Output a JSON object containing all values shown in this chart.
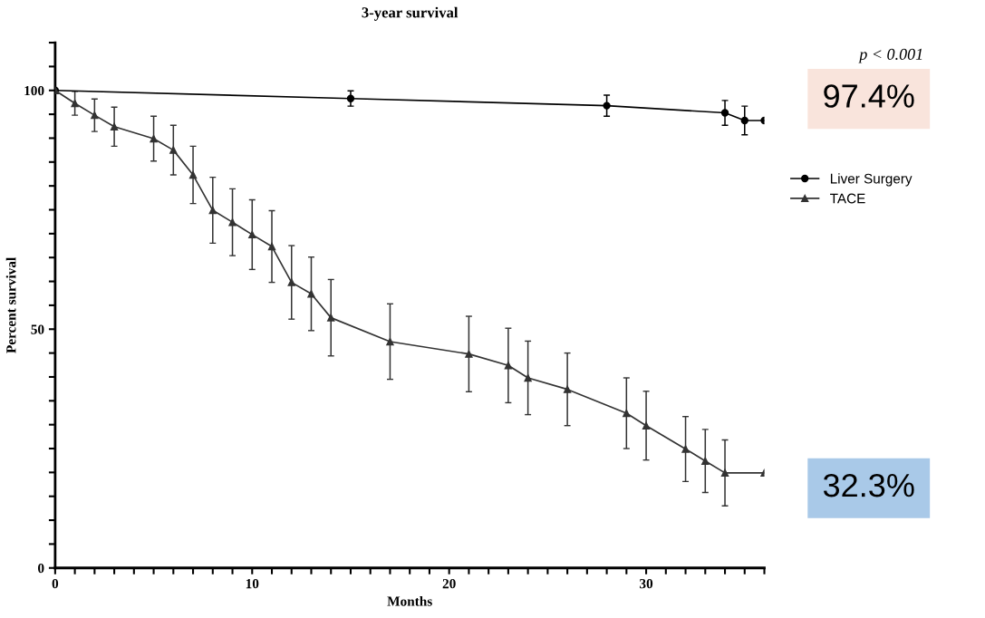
{
  "chart_data": {
    "type": "line",
    "title": "3-year survival",
    "xlabel": "Months",
    "ylabel": "Percent survival",
    "xlim": [
      0,
      36
    ],
    "ylim": [
      0,
      110
    ],
    "xticks": [
      0,
      {
        "value": 1,
        "label": null
      },
      {
        "value": 2,
        "label": null
      },
      {
        "value": 3,
        "label": null
      },
      {
        "value": 4,
        "label": null
      },
      {
        "value": 5,
        "label": null
      },
      {
        "value": 6,
        "label": null
      },
      {
        "value": 7,
        "label": null
      },
      {
        "value": 8,
        "label": null
      },
      {
        "value": 9,
        "label": null
      },
      10,
      {
        "value": 11,
        "label": null
      },
      {
        "value": 12,
        "label": null
      },
      {
        "value": 13,
        "label": null
      },
      {
        "value": 14,
        "label": null
      },
      {
        "value": 15,
        "label": null
      },
      {
        "value": 16,
        "label": null
      },
      {
        "value": 17,
        "label": null
      },
      {
        "value": 18,
        "label": null
      },
      {
        "value": 19,
        "label": null
      },
      20,
      {
        "value": 21,
        "label": null
      },
      {
        "value": 22,
        "label": null
      },
      {
        "value": 23,
        "label": null
      },
      {
        "value": 24,
        "label": null
      },
      {
        "value": 25,
        "label": null
      },
      {
        "value": 26,
        "label": null
      },
      {
        "value": 27,
        "label": null
      },
      {
        "value": 28,
        "label": null
      },
      {
        "value": 29,
        "label": null
      },
      30,
      {
        "value": 31,
        "label": null
      },
      {
        "value": 32,
        "label": null
      },
      {
        "value": 33,
        "label": null
      },
      {
        "value": 34,
        "label": null
      },
      {
        "value": 35,
        "label": null
      },
      {
        "value": 36,
        "label": null
      }
    ],
    "yticks": [
      0,
      {
        "value": 5,
        "label": null
      },
      {
        "value": 10,
        "label": null
      },
      {
        "value": 15,
        "label": null
      },
      {
        "value": 20,
        "label": null
      },
      {
        "value": 25,
        "label": null
      },
      {
        "value": 30,
        "label": null
      },
      {
        "value": 35,
        "label": null
      },
      {
        "value": 40,
        "label": null
      },
      {
        "value": 45,
        "label": null
      },
      50,
      {
        "value": 55,
        "label": null
      },
      {
        "value": 60,
        "label": null
      },
      {
        "value": 65,
        "label": null
      },
      {
        "value": 70,
        "label": null
      },
      {
        "value": 75,
        "label": null
      },
      {
        "value": 80,
        "label": null
      },
      {
        "value": 85,
        "label": null
      },
      {
        "value": 90,
        "label": null
      },
      {
        "value": 95,
        "label": null
      },
      100,
      {
        "value": 105,
        "label": null
      },
      {
        "value": 110,
        "label": null
      }
    ],
    "series": [
      {
        "name": "Liver Surgery",
        "color": "#000000",
        "marker": "circle",
        "x": [
          0,
          15,
          28,
          34,
          35,
          36
        ],
        "values": [
          100,
          98.3,
          96.8,
          95.3,
          93.7,
          93.7
        ],
        "errors": [
          null,
          1.6,
          2.2,
          2.6,
          3.0,
          null
        ]
      },
      {
        "name": "TACE",
        "color": "#333333",
        "marker": "triangle",
        "x": [
          0,
          1,
          2,
          3,
          5,
          6,
          7,
          8,
          9,
          10,
          11,
          12,
          13,
          14,
          17,
          21,
          23,
          24,
          26,
          29,
          30,
          32,
          33,
          34,
          36
        ],
        "values": [
          100,
          97.3,
          94.8,
          92.4,
          89.9,
          87.5,
          82.3,
          74.9,
          72.4,
          69.8,
          67.3,
          59.8,
          57.4,
          52.4,
          47.4,
          44.8,
          42.4,
          39.8,
          37.4,
          32.4,
          29.8,
          24.9,
          22.4,
          19.9,
          19.9
        ],
        "errors": [
          null,
          2.5,
          3.4,
          4.1,
          4.7,
          5.2,
          6.0,
          6.9,
          7.0,
          7.3,
          7.5,
          7.7,
          7.7,
          8.0,
          7.9,
          7.9,
          7.8,
          7.7,
          7.6,
          7.4,
          7.2,
          6.8,
          6.6,
          6.9,
          null
        ]
      }
    ],
    "legend": "right",
    "grid": false,
    "annotations": [
      "p < 0.001",
      "97.4%",
      "32.3%"
    ]
  }
}
